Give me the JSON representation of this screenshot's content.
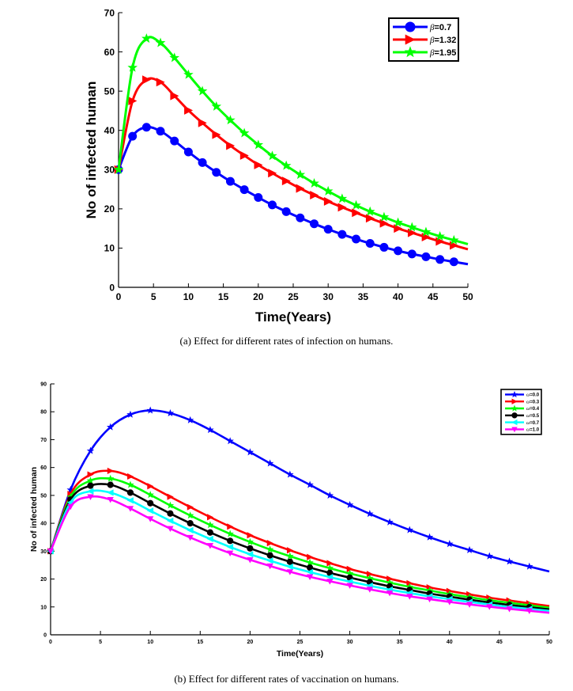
{
  "chart_data": [
    {
      "type": "line",
      "title": "",
      "caption": "(a)  Effect for different rates of infection on humans.",
      "xlabel": "Time(Years)",
      "ylabel": "No of infected human",
      "xlim": [
        0,
        50
      ],
      "ylim": [
        0,
        70
      ],
      "xticks": [
        "0",
        "5",
        "10",
        "15",
        "20",
        "25",
        "30",
        "35",
        "40",
        "45",
        "50"
      ],
      "yticks": [
        "0",
        "10",
        "20",
        "30",
        "40",
        "50",
        "60",
        "70"
      ],
      "legend_position": "top-right",
      "x": [
        0,
        2,
        4,
        6,
        8,
        10,
        12,
        14,
        16,
        18,
        20,
        22,
        24,
        26,
        28,
        30,
        32,
        34,
        36,
        38,
        40,
        42,
        44,
        46,
        48
      ],
      "series": [
        {
          "name": "β=0.7",
          "label_symbol": "β",
          "label_value": "=0.7",
          "color": "#0000ff",
          "marker": "circle",
          "values": [
            30,
            38.5,
            40.8,
            39.8,
            37.3,
            34.5,
            31.8,
            29.3,
            27.0,
            24.9,
            22.9,
            21.0,
            19.3,
            17.7,
            16.2,
            14.8,
            13.5,
            12.3,
            11.2,
            10.2,
            9.3,
            8.5,
            7.8,
            7.1,
            6.5
          ]
        },
        {
          "name": "β=1.32",
          "label_symbol": "β",
          "label_value": "=1.32",
          "color": "#ff0000",
          "marker": "triangle-right",
          "values": [
            30,
            47.5,
            52.9,
            52.3,
            48.8,
            45.1,
            41.9,
            38.9,
            36.1,
            33.6,
            31.2,
            29.1,
            27.1,
            25.2,
            23.5,
            21.9,
            20.4,
            19.0,
            17.6,
            16.3,
            15.0,
            13.9,
            12.8,
            11.7,
            10.7
          ]
        },
        {
          "name": "β=1.95",
          "label_symbol": "β",
          "label_value": "=1.95",
          "color": "#00ff00",
          "marker": "star",
          "values": [
            30,
            56,
            63.4,
            62.3,
            58.5,
            54.2,
            50.0,
            46.1,
            42.6,
            39.3,
            36.3,
            33.5,
            31.0,
            28.7,
            26.5,
            24.5,
            22.6,
            20.9,
            19.3,
            17.9,
            16.5,
            15.3,
            14.1,
            13.0,
            12.0
          ]
        }
      ]
    },
    {
      "type": "line",
      "title": "",
      "caption": "(b)  Effect for different rates of vaccination on humans.",
      "xlabel": "Time(Years)",
      "ylabel": "No of infected human",
      "xlim": [
        0,
        50
      ],
      "ylim": [
        0,
        90
      ],
      "xticks": [
        "0",
        "5",
        "10",
        "15",
        "20",
        "25",
        "30",
        "35",
        "40",
        "45",
        "50"
      ],
      "yticks": [
        "0",
        "10",
        "20",
        "30",
        "40",
        "50",
        "60",
        "70",
        "80",
        "90"
      ],
      "legend_position": "top-right",
      "x": [
        0,
        2,
        4,
        6,
        8,
        10,
        12,
        14,
        16,
        18,
        20,
        22,
        24,
        26,
        28,
        30,
        32,
        34,
        36,
        38,
        40,
        42,
        44,
        46,
        48
      ],
      "series": [
        {
          "name": "ω=0.0",
          "label_symbol": "ω",
          "label_value": "=0.0",
          "color": "#0000ff",
          "marker": "star",
          "values": [
            30,
            52,
            66,
            74.5,
            79,
            80.5,
            79.5,
            77,
            73.5,
            69.5,
            65.5,
            61.5,
            57.5,
            53.8,
            50,
            46.6,
            43.4,
            40.4,
            37.6,
            35,
            32.6,
            30.4,
            28.2,
            26.3,
            24.5
          ]
        },
        {
          "name": "ω=0.3",
          "label_symbol": "ω",
          "label_value": "=0.3",
          "color": "#ff0000",
          "marker": "triangle-right",
          "values": [
            30,
            50.5,
            57.5,
            58.8,
            56.8,
            53.3,
            49.5,
            45.8,
            42.2,
            38.8,
            35.7,
            32.9,
            30.3,
            27.9,
            25.7,
            23.6,
            21.8,
            20.1,
            18.5,
            17.0,
            15.7,
            14.5,
            13.3,
            12.3,
            11.3
          ]
        },
        {
          "name": "ω=0.4",
          "label_symbol": "ω",
          "label_value": "=0.4",
          "color": "#00ff00",
          "marker": "star",
          "values": [
            30,
            49.5,
            55.3,
            56.0,
            53.8,
            50.2,
            46.4,
            42.8,
            39.4,
            36.2,
            33.3,
            30.6,
            28.2,
            25.9,
            23.9,
            22.0,
            20.3,
            18.7,
            17.2,
            15.9,
            14.6,
            13.5,
            12.4,
            11.5,
            10.6
          ]
        },
        {
          "name": "ω=0.5",
          "label_symbol": "ω",
          "label_value": "=0.5",
          "color": "#000000",
          "marker": "circle",
          "values": [
            30,
            48.5,
            53.5,
            53.8,
            51.0,
            47.2,
            43.5,
            40.0,
            36.7,
            33.7,
            31.0,
            28.5,
            26.2,
            24.1,
            22.2,
            20.5,
            18.9,
            17.4,
            16.1,
            14.8,
            13.7,
            12.6,
            11.6,
            10.7,
            9.9
          ]
        },
        {
          "name": "ω=0.7",
          "label_symbol": "ω",
          "label_value": "=0.7",
          "color": "#00ffff",
          "marker": "triangle-left",
          "values": [
            30,
            47.5,
            51.5,
            51.0,
            48.2,
            44.5,
            40.9,
            37.5,
            34.4,
            31.5,
            28.9,
            26.6,
            24.4,
            22.5,
            20.7,
            19.1,
            17.6,
            16.2,
            15.0,
            13.8,
            12.8,
            11.8,
            10.9,
            10.0,
            9.3
          ]
        },
        {
          "name": "ω=1.0",
          "label_symbol": "ω",
          "label_value": "=1.0",
          "color": "#ff00ff",
          "marker": "triangle-down",
          "values": [
            30,
            46,
            49.5,
            48.5,
            45.3,
            41.6,
            38.1,
            34.9,
            32.0,
            29.3,
            26.9,
            24.7,
            22.6,
            20.8,
            19.2,
            17.7,
            16.3,
            15.0,
            13.8,
            12.8,
            11.8,
            10.9,
            10.1,
            9.3,
            8.6
          ]
        }
      ]
    }
  ]
}
